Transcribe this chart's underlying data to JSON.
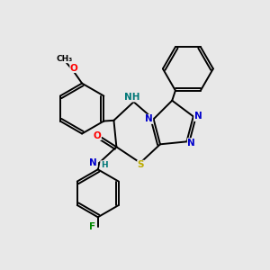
{
  "background_color": "#e8e8e8",
  "bond_color": "#000000",
  "atom_colors": {
    "N": "#0000cc",
    "O": "#ff0000",
    "S": "#bbaa00",
    "F": "#008800",
    "NH_teal": "#007777",
    "C": "#000000"
  },
  "figsize": [
    3.0,
    3.0
  ],
  "dpi": 100
}
